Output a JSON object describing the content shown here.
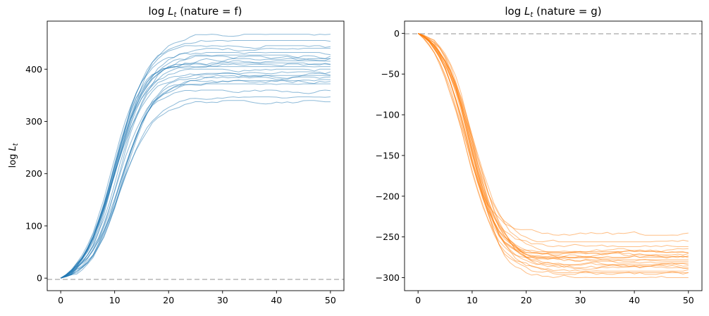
{
  "chart_data": [
    {
      "type": "line",
      "title_prefix": "log",
      "title_var": "L",
      "title_sub": "t",
      "title_suffix": " (nature = f)",
      "ylabel_prefix": "log",
      "ylabel_var": "L",
      "ylabel_sub": "t",
      "xlim": [
        -2.5,
        52.5
      ],
      "ylim": [
        -24,
        492
      ],
      "xticks": [
        0,
        10,
        20,
        30,
        40,
        50
      ],
      "yticks": [
        0,
        100,
        200,
        300,
        400
      ],
      "reference_line": 0,
      "color": "#1f77b4",
      "x_max": 50,
      "midpoint": 10.5,
      "steepness": 0.34,
      "series_finals": [
        467,
        455,
        445,
        440,
        432,
        427,
        425,
        420,
        416,
        412,
        410,
        405,
        400,
        395,
        392,
        385,
        380,
        378,
        372,
        360,
        347,
        340,
        388
      ]
    },
    {
      "type": "line",
      "title_prefix": "log",
      "title_var": "L",
      "title_sub": "t",
      "title_suffix": " (nature = g)",
      "xlim": [
        -2.5,
        52.5
      ],
      "ylim": [
        -316,
        15
      ],
      "xticks": [
        0,
        10,
        20,
        30,
        40,
        50
      ],
      "yticks": [
        0,
        -50,
        -100,
        -150,
        -200,
        -250,
        -300
      ],
      "reference_line": 0,
      "color": "#ff7f0e",
      "x_max": 50,
      "midpoint": 9.5,
      "steepness": 0.36,
      "series_finals": [
        -248,
        -256,
        -262,
        -268,
        -270,
        -272,
        -274,
        -276,
        -278,
        -280,
        -282,
        -284,
        -286,
        -288,
        -290,
        -292,
        -294,
        -296,
        -300,
        -269,
        -275
      ]
    }
  ]
}
